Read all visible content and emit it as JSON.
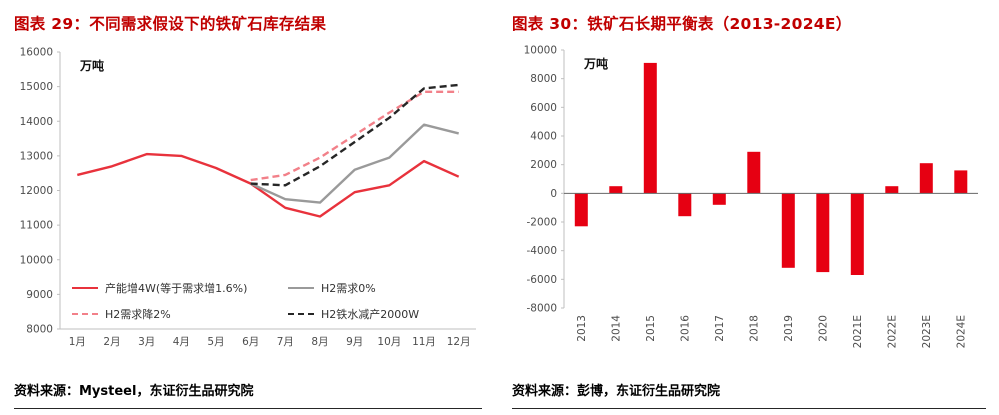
{
  "colors": {
    "title_red": "#c00000",
    "series_red": "#e8323c",
    "series_gray": "#9a9a9a",
    "series_pink": "#f28089",
    "series_black": "#262626",
    "bar_red": "#e60012",
    "axis_text": "#4d4d4d"
  },
  "left_panel": {
    "title": "图表 29：不同需求假设下的铁矿石库存结果",
    "source": "资料来源：Mysteel，东证衍生品研究院"
  },
  "right_panel": {
    "title": "图表 30：铁矿石长期平衡表（2013-2024E）",
    "source": "资料来源：彭博，东证衍生品研究院"
  },
  "chart_data": [
    {
      "type": "line",
      "title": "不同需求假设下的铁矿石库存结果",
      "unit": "万吨",
      "categories": [
        "1月",
        "2月",
        "3月",
        "4月",
        "5月",
        "6月",
        "7月",
        "8月",
        "9月",
        "10月",
        "11月",
        "12月"
      ],
      "ylim": [
        8000,
        16000
      ],
      "ytick_step": 1000,
      "grid": false,
      "legend_position": "inside-bottom-left",
      "series": [
        {
          "name": "产能增4W(等于需求增1.6%)",
          "color": "#e8323c",
          "dash": "solid",
          "values": [
            12450,
            12700,
            13050,
            13000,
            12650,
            12200,
            11500,
            11250,
            11950,
            12150,
            12850,
            12400
          ]
        },
        {
          "name": "H2需求0%",
          "color": "#9a9a9a",
          "dash": "solid",
          "values": [
            null,
            null,
            null,
            null,
            null,
            12200,
            11750,
            11650,
            12600,
            12950,
            13900,
            13650
          ]
        },
        {
          "name": "H2需求降2%",
          "color": "#f28089",
          "dash": "dashed",
          "values": [
            null,
            null,
            null,
            null,
            null,
            12300,
            12450,
            12950,
            13600,
            14250,
            14850,
            14850
          ]
        },
        {
          "name": "H2铁水减产2000W",
          "color": "#262626",
          "dash": "dashed",
          "values": [
            null,
            null,
            null,
            null,
            null,
            12200,
            12150,
            12700,
            13400,
            14100,
            14950,
            15050
          ]
        }
      ]
    },
    {
      "type": "bar",
      "title": "铁矿石长期平衡表（2013-2024E）",
      "unit": "万吨",
      "categories": [
        "2013",
        "2014",
        "2015",
        "2016",
        "2017",
        "2018",
        "2019",
        "2020",
        "2021E",
        "2022E",
        "2023E",
        "2024E"
      ],
      "ylim": [
        -8000,
        10000
      ],
      "ytick_step": 2000,
      "grid": false,
      "bar_color": "#e60012",
      "values": [
        -2300,
        500,
        9100,
        -1600,
        -800,
        2900,
        -5200,
        -5500,
        -5700,
        500,
        2100,
        1600
      ]
    }
  ]
}
